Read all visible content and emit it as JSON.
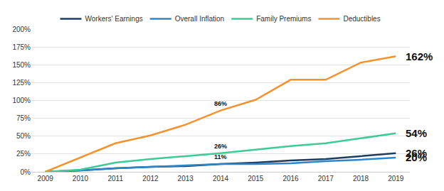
{
  "chart_data": {
    "type": "line",
    "x": [
      2009,
      2010,
      2011,
      2012,
      2013,
      2014,
      2015,
      2016,
      2017,
      2018,
      2019
    ],
    "series": [
      {
        "name": "Workers' Earnings",
        "color": "#1b3d63",
        "values": [
          0,
          2,
          5,
          7,
          8,
          11,
          13,
          16,
          18,
          22,
          26
        ]
      },
      {
        "name": "Overall Inflation",
        "color": "#2e86c9",
        "values": [
          0,
          2,
          5,
          7,
          9,
          11,
          11,
          12,
          15,
          17,
          20
        ]
      },
      {
        "name": "Family Premiums",
        "color": "#3ccb94",
        "values": [
          0,
          3,
          13,
          18,
          22,
          26,
          31,
          36,
          40,
          47,
          54
        ]
      },
      {
        "name": "Deductibles",
        "color": "#f6922d",
        "values": [
          0,
          20,
          40,
          51,
          66,
          86,
          101,
          129,
          129,
          153,
          162
        ]
      }
    ],
    "xlim": [
      2008.6,
      2019.4
    ],
    "xticks": [
      2009,
      2010,
      2011,
      2012,
      2013,
      2014,
      2015,
      2016,
      2017,
      2018,
      2019
    ],
    "ylim": [
      0,
      200
    ],
    "yticks": [
      {
        "value": 0,
        "label": "0%"
      },
      {
        "value": 25,
        "label": "25%"
      },
      {
        "value": 50,
        "label": "50%"
      },
      {
        "value": 75,
        "label": "75%"
      },
      {
        "value": 100,
        "label": "100%"
      },
      {
        "value": 125,
        "label": "125%"
      },
      {
        "value": 150,
        "label": "150%"
      },
      {
        "value": 175,
        "label": "175%"
      },
      {
        "value": 200,
        "label": "200%"
      }
    ],
    "annotations": [
      {
        "text": "86%",
        "x": 2014,
        "y": 86
      },
      {
        "text": "26%",
        "x": 2014,
        "y": 26
      },
      {
        "text": "11%",
        "x": 2014,
        "y": 11
      },
      {
        "text": "162%",
        "x": 2019,
        "y": 162
      },
      {
        "text": "54%",
        "x": 2019,
        "y": 54
      },
      {
        "text": "26%",
        "x": 2019,
        "y": 26
      },
      {
        "text": "20%",
        "x": 2019,
        "y": 20
      }
    ],
    "grid": true,
    "legend": "top"
  }
}
